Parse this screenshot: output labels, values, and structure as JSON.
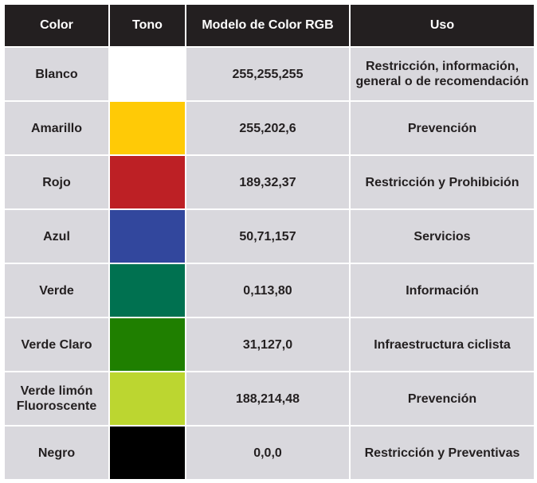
{
  "headers": {
    "color": "Color",
    "tono": "Tono",
    "rgb": "Modelo  de Color RGB",
    "uso": "Uso"
  },
  "rows": [
    {
      "name": "Blanco",
      "rgb": "255,255,255",
      "uso": "Restricción, información, general o de recomendación",
      "swatch": "#ffffff"
    },
    {
      "name": "Amarillo",
      "rgb": "255,202,6",
      "uso": "Prevención",
      "swatch": "#ffca06"
    },
    {
      "name": "Rojo",
      "rgb": "189,32,37",
      "uso": "Restricción y Prohibición",
      "swatch": "#bd2025"
    },
    {
      "name": "Azul",
      "rgb": "50,71,157",
      "uso": "Servicios",
      "swatch": "#32479d"
    },
    {
      "name": "Verde",
      "rgb": "0,113,80",
      "uso": "Información",
      "swatch": "#007150"
    },
    {
      "name": "Verde Claro",
      "rgb": "31,127,0",
      "uso": "Infraestructura ciclista",
      "swatch": "#1f7f00"
    },
    {
      "name": "Verde limón Fluoroscente",
      "rgb": "188,214,48",
      "uso": "Prevención",
      "swatch": "#bcd630"
    },
    {
      "name": "Negro",
      "rgb": "0,0,0",
      "uso": "Restricción y Preventivas",
      "swatch": "#000000"
    }
  ]
}
